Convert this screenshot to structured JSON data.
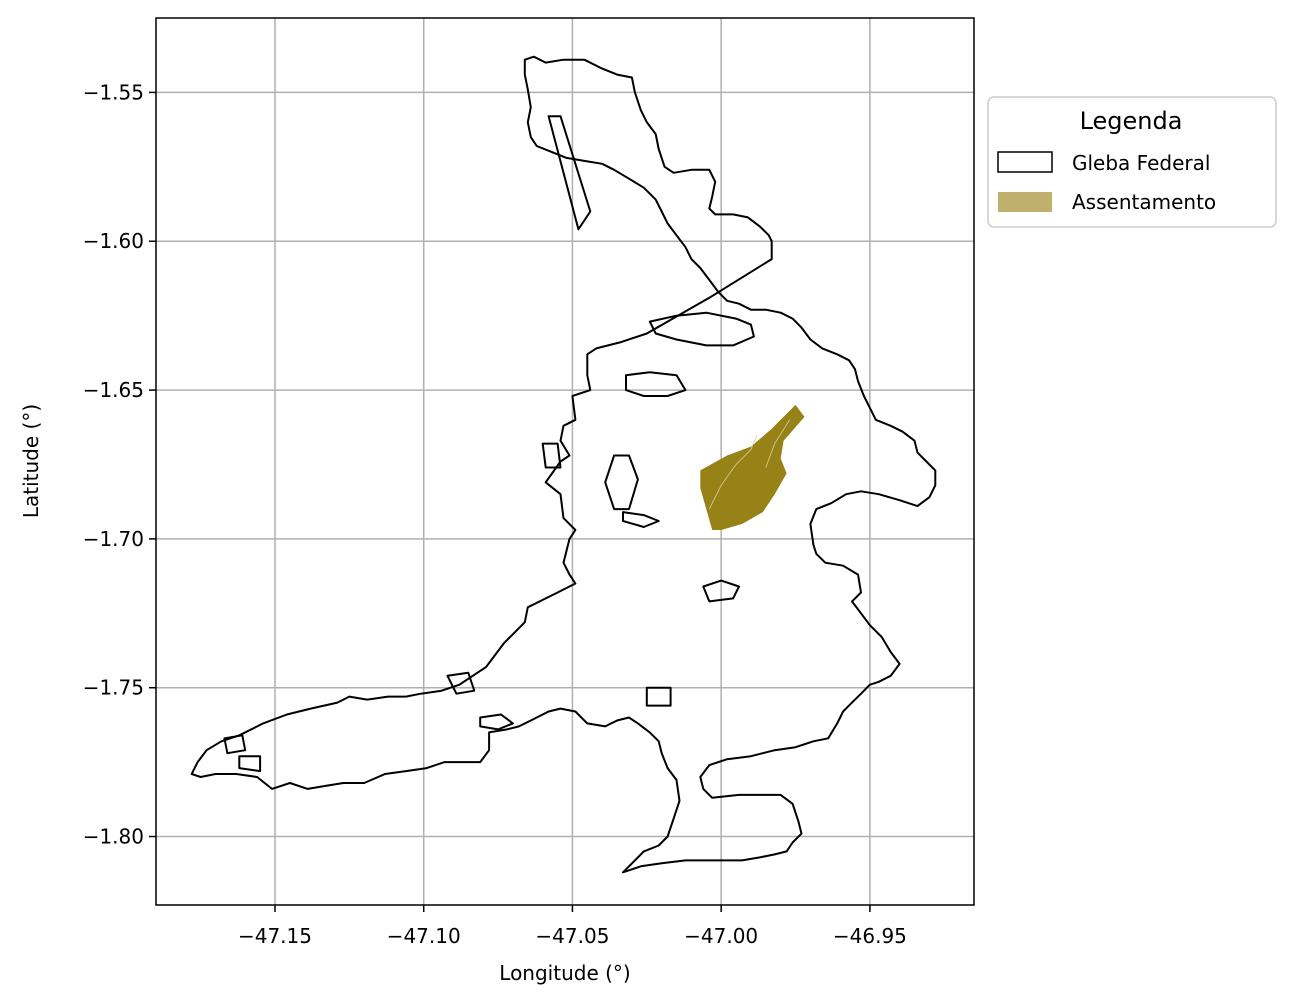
{
  "chart_data": {
    "type": "map",
    "xlabel": "Longitude (°)",
    "ylabel": "Latitude (°)",
    "xlim": [
      -47.19,
      -46.915
    ],
    "ylim": [
      -1.823,
      -1.525
    ],
    "xticks": [
      -47.15,
      -47.1,
      -47.05,
      -47.0,
      -46.95
    ],
    "xtick_labels": [
      "−47.15",
      "−47.10",
      "−47.05",
      "−47.00",
      "−46.95"
    ],
    "yticks": [
      -1.55,
      -1.6,
      -1.65,
      -1.7,
      -1.75,
      -1.8
    ],
    "ytick_labels": [
      "−1.55",
      "−1.60",
      "−1.65",
      "−1.70",
      "−1.75",
      "−1.80"
    ],
    "grid": true,
    "legend": {
      "title": "Legenda",
      "placement": "outside-upper-right",
      "entries": [
        {
          "label": "Gleba Federal",
          "style": "outline",
          "color": "#000000"
        },
        {
          "label": "Assentamento",
          "style": "fill",
          "color": "#bfb06e"
        }
      ]
    },
    "colors": {
      "gleba_outline": "#000000",
      "assentamento_fill": "#968217",
      "legend_assentamento": "#bfb06e",
      "grid": "#b0b0b0"
    },
    "gleba_federal": [
      [
        [
          -47.066,
          -1.539
        ],
        [
          -47.063,
          -1.538
        ],
        [
          -47.059,
          -1.54
        ],
        [
          -47.053,
          -1.539
        ],
        [
          -47.046,
          -1.539
        ],
        [
          -47.04,
          -1.542
        ],
        [
          -47.035,
          -1.544
        ],
        [
          -47.03,
          -1.545
        ],
        [
          -47.029,
          -1.55
        ],
        [
          -47.027,
          -1.556
        ],
        [
          -47.025,
          -1.56
        ],
        [
          -47.022,
          -1.564
        ],
        [
          -47.021,
          -1.569
        ],
        [
          -47.019,
          -1.575
        ],
        [
          -47.016,
          -1.577
        ],
        [
          -47.01,
          -1.576
        ],
        [
          -47.004,
          -1.576
        ],
        [
          -47.002,
          -1.58
        ],
        [
          -47.003,
          -1.585
        ],
        [
          -47.004,
          -1.589
        ],
        [
          -47.002,
          -1.591
        ],
        [
          -46.996,
          -1.591
        ],
        [
          -46.991,
          -1.592
        ],
        [
          -46.987,
          -1.595
        ],
        [
          -46.984,
          -1.598
        ],
        [
          -46.983,
          -1.6
        ],
        [
          -46.983,
          -1.606
        ],
        [
          -47.004,
          -1.619
        ],
        [
          -47.025,
          -1.631
        ],
        [
          -47.034,
          -1.634
        ],
        [
          -47.042,
          -1.636
        ],
        [
          -47.045,
          -1.638
        ],
        [
          -47.045,
          -1.645
        ],
        [
          -47.044,
          -1.65
        ],
        [
          -47.05,
          -1.652
        ],
        [
          -47.049,
          -1.66
        ],
        [
          -47.053,
          -1.662
        ],
        [
          -47.054,
          -1.667
        ],
        [
          -47.051,
          -1.672
        ],
        [
          -47.054,
          -1.674
        ],
        [
          -47.059,
          -1.681
        ],
        [
          -47.054,
          -1.685
        ],
        [
          -47.053,
          -1.693
        ],
        [
          -47.049,
          -1.697
        ],
        [
          -47.051,
          -1.7
        ],
        [
          -47.053,
          -1.708
        ],
        [
          -47.051,
          -1.712
        ],
        [
          -47.049,
          -1.715
        ],
        [
          -47.055,
          -1.718
        ],
        [
          -47.061,
          -1.721
        ],
        [
          -47.065,
          -1.723
        ],
        [
          -47.066,
          -1.728
        ],
        [
          -47.069,
          -1.731
        ],
        [
          -47.073,
          -1.735
        ],
        [
          -47.079,
          -1.743
        ],
        [
          -47.088,
          -1.749
        ],
        [
          -47.094,
          -1.751
        ],
        [
          -47.101,
          -1.752
        ],
        [
          -47.106,
          -1.753
        ],
        [
          -47.112,
          -1.753
        ],
        [
          -47.119,
          -1.754
        ],
        [
          -47.125,
          -1.753
        ],
        [
          -47.129,
          -1.755
        ],
        [
          -47.138,
          -1.757
        ],
        [
          -47.146,
          -1.759
        ],
        [
          -47.154,
          -1.762
        ],
        [
          -47.162,
          -1.766
        ],
        [
          -47.168,
          -1.768
        ],
        [
          -47.173,
          -1.771
        ],
        [
          -47.176,
          -1.775
        ],
        [
          -47.178,
          -1.779
        ],
        [
          -47.175,
          -1.78
        ],
        [
          -47.17,
          -1.779
        ],
        [
          -47.163,
          -1.779
        ],
        [
          -47.156,
          -1.78
        ],
        [
          -47.151,
          -1.784
        ],
        [
          -47.145,
          -1.782
        ],
        [
          -47.139,
          -1.784
        ],
        [
          -47.133,
          -1.783
        ],
        [
          -47.127,
          -1.782
        ],
        [
          -47.12,
          -1.782
        ],
        [
          -47.113,
          -1.779
        ],
        [
          -47.106,
          -1.778
        ],
        [
          -47.099,
          -1.777
        ],
        [
          -47.093,
          -1.775
        ],
        [
          -47.087,
          -1.775
        ],
        [
          -47.081,
          -1.775
        ],
        [
          -47.078,
          -1.771
        ],
        [
          -47.078,
          -1.765
        ],
        [
          -47.072,
          -1.764
        ],
        [
          -47.068,
          -1.763
        ],
        [
          -47.064,
          -1.761
        ],
        [
          -47.058,
          -1.758
        ],
        [
          -47.054,
          -1.757
        ],
        [
          -47.049,
          -1.758
        ],
        [
          -47.045,
          -1.762
        ],
        [
          -47.039,
          -1.763
        ],
        [
          -47.035,
          -1.761
        ],
        [
          -47.031,
          -1.76
        ],
        [
          -47.028,
          -1.762
        ],
        [
          -47.024,
          -1.765
        ],
        [
          -47.021,
          -1.768
        ],
        [
          -47.02,
          -1.772
        ],
        [
          -47.018,
          -1.777
        ],
        [
          -47.015,
          -1.781
        ],
        [
          -47.014,
          -1.788
        ],
        [
          -47.016,
          -1.794
        ],
        [
          -47.018,
          -1.8
        ],
        [
          -47.021,
          -1.803
        ],
        [
          -47.026,
          -1.805
        ],
        [
          -47.029,
          -1.808
        ],
        [
          -47.033,
          -1.812
        ],
        [
          -47.027,
          -1.81
        ],
        [
          -47.02,
          -1.809
        ],
        [
          -47.012,
          -1.808
        ],
        [
          -47.002,
          -1.808
        ],
        [
          -46.993,
          -1.808
        ],
        [
          -46.987,
          -1.807
        ],
        [
          -46.982,
          -1.806
        ],
        [
          -46.978,
          -1.805
        ],
        [
          -46.976,
          -1.802
        ],
        [
          -46.973,
          -1.799
        ],
        [
          -46.974,
          -1.795
        ],
        [
          -46.976,
          -1.789
        ],
        [
          -46.98,
          -1.786
        ],
        [
          -46.987,
          -1.786
        ],
        [
          -46.994,
          -1.786
        ],
        [
          -47.003,
          -1.787
        ],
        [
          -47.006,
          -1.784
        ],
        [
          -47.007,
          -1.78
        ],
        [
          -47.004,
          -1.776
        ],
        [
          -46.998,
          -1.774
        ],
        [
          -46.99,
          -1.773
        ],
        [
          -46.982,
          -1.771
        ],
        [
          -46.975,
          -1.77
        ],
        [
          -46.969,
          -1.768
        ],
        [
          -46.964,
          -1.767
        ],
        [
          -46.961,
          -1.762
        ],
        [
          -46.959,
          -1.758
        ],
        [
          -46.956,
          -1.755
        ],
        [
          -46.953,
          -1.752
        ],
        [
          -46.95,
          -1.749
        ],
        [
          -46.947,
          -1.748
        ],
        [
          -46.943,
          -1.746
        ],
        [
          -46.94,
          -1.742
        ],
        [
          -46.943,
          -1.738
        ],
        [
          -46.946,
          -1.733
        ],
        [
          -46.95,
          -1.729
        ],
        [
          -46.953,
          -1.725
        ],
        [
          -46.956,
          -1.721
        ],
        [
          -46.953,
          -1.718
        ],
        [
          -46.954,
          -1.712
        ],
        [
          -46.959,
          -1.709
        ],
        [
          -46.965,
          -1.708
        ],
        [
          -46.968,
          -1.705
        ],
        [
          -46.969,
          -1.702
        ],
        [
          -46.97,
          -1.695
        ],
        [
          -46.968,
          -1.69
        ],
        [
          -46.963,
          -1.688
        ],
        [
          -46.958,
          -1.685
        ],
        [
          -46.953,
          -1.684
        ],
        [
          -46.947,
          -1.685
        ],
        [
          -46.94,
          -1.687
        ],
        [
          -46.934,
          -1.689
        ],
        [
          -46.93,
          -1.686
        ],
        [
          -46.928,
          -1.682
        ],
        [
          -46.928,
          -1.677
        ],
        [
          -46.931,
          -1.674
        ],
        [
          -46.934,
          -1.671
        ],
        [
          -46.935,
          -1.667
        ],
        [
          -46.939,
          -1.664
        ],
        [
          -46.943,
          -1.662
        ],
        [
          -46.948,
          -1.66
        ],
        [
          -46.95,
          -1.656
        ],
        [
          -46.952,
          -1.652
        ],
        [
          -46.954,
          -1.647
        ],
        [
          -46.955,
          -1.643
        ],
        [
          -46.957,
          -1.64
        ],
        [
          -46.961,
          -1.638
        ],
        [
          -46.966,
          -1.636
        ],
        [
          -46.97,
          -1.633
        ],
        [
          -46.973,
          -1.629
        ],
        [
          -46.976,
          -1.626
        ],
        [
          -46.98,
          -1.624
        ],
        [
          -46.985,
          -1.623
        ],
        [
          -46.99,
          -1.623
        ],
        [
          -46.994,
          -1.621
        ],
        [
          -46.998,
          -1.62
        ],
        [
          -47.001,
          -1.617
        ],
        [
          -47.004,
          -1.613
        ],
        [
          -47.007,
          -1.609
        ],
        [
          -47.01,
          -1.606
        ],
        [
          -47.012,
          -1.602
        ],
        [
          -47.015,
          -1.598
        ],
        [
          -47.018,
          -1.594
        ],
        [
          -47.02,
          -1.59
        ],
        [
          -47.022,
          -1.586
        ],
        [
          -47.026,
          -1.582
        ],
        [
          -47.031,
          -1.579
        ],
        [
          -47.036,
          -1.576
        ],
        [
          -47.04,
          -1.574
        ],
        [
          -47.046,
          -1.573
        ],
        [
          -47.052,
          -1.572
        ],
        [
          -47.057,
          -1.57
        ],
        [
          -47.062,
          -1.568
        ],
        [
          -47.064,
          -1.565
        ],
        [
          -47.065,
          -1.56
        ],
        [
          -47.064,
          -1.555
        ],
        [
          -47.065,
          -1.549
        ],
        [
          -47.066,
          -1.544
        ],
        [
          -47.066,
          -1.539
        ]
      ],
      [
        [
          -47.058,
          -1.558
        ],
        [
          -47.054,
          -1.558
        ],
        [
          -47.044,
          -1.59
        ],
        [
          -47.048,
          -1.596
        ],
        [
          -47.058,
          -1.558
        ]
      ],
      [
        [
          -47.024,
          -1.627
        ],
        [
          -47.015,
          -1.625
        ],
        [
          -47.005,
          -1.624
        ],
        [
          -46.995,
          -1.626
        ],
        [
          -46.99,
          -1.628
        ],
        [
          -46.989,
          -1.632
        ],
        [
          -46.996,
          -1.635
        ],
        [
          -47.005,
          -1.635
        ],
        [
          -47.015,
          -1.633
        ],
        [
          -47.022,
          -1.631
        ],
        [
          -47.024,
          -1.627
        ]
      ],
      [
        [
          -47.032,
          -1.645
        ],
        [
          -47.024,
          -1.644
        ],
        [
          -47.015,
          -1.645
        ],
        [
          -47.012,
          -1.65
        ],
        [
          -47.018,
          -1.652
        ],
        [
          -47.026,
          -1.652
        ],
        [
          -47.032,
          -1.65
        ],
        [
          -47.032,
          -1.645
        ]
      ],
      [
        [
          -47.036,
          -1.672
        ],
        [
          -47.031,
          -1.672
        ],
        [
          -47.028,
          -1.68
        ],
        [
          -47.031,
          -1.69
        ],
        [
          -47.036,
          -1.69
        ],
        [
          -47.039,
          -1.681
        ],
        [
          -47.036,
          -1.672
        ]
      ],
      [
        [
          -47.033,
          -1.691
        ],
        [
          -47.026,
          -1.692
        ],
        [
          -47.021,
          -1.694
        ],
        [
          -47.026,
          -1.696
        ],
        [
          -47.033,
          -1.694
        ],
        [
          -47.033,
          -1.691
        ]
      ],
      [
        [
          -47.006,
          -1.716
        ],
        [
          -47.0,
          -1.714
        ],
        [
          -46.994,
          -1.716
        ],
        [
          -46.996,
          -1.72
        ],
        [
          -47.004,
          -1.721
        ],
        [
          -47.006,
          -1.716
        ]
      ],
      [
        [
          -47.025,
          -1.75
        ],
        [
          -47.017,
          -1.75
        ],
        [
          -47.017,
          -1.756
        ],
        [
          -47.025,
          -1.756
        ],
        [
          -47.025,
          -1.75
        ]
      ],
      [
        [
          -47.06,
          -1.668
        ],
        [
          -47.055,
          -1.668
        ],
        [
          -47.054,
          -1.676
        ],
        [
          -47.059,
          -1.676
        ],
        [
          -47.06,
          -1.668
        ]
      ],
      [
        [
          -47.167,
          -1.767
        ],
        [
          -47.161,
          -1.766
        ],
        [
          -47.16,
          -1.771
        ],
        [
          -47.166,
          -1.772
        ],
        [
          -47.167,
          -1.767
        ]
      ],
      [
        [
          -47.162,
          -1.773
        ],
        [
          -47.155,
          -1.773
        ],
        [
          -47.155,
          -1.778
        ],
        [
          -47.162,
          -1.777
        ],
        [
          -47.162,
          -1.773
        ]
      ],
      [
        [
          -47.081,
          -1.76
        ],
        [
          -47.074,
          -1.759
        ],
        [
          -47.07,
          -1.762
        ],
        [
          -47.075,
          -1.764
        ],
        [
          -47.081,
          -1.763
        ],
        [
          -47.081,
          -1.76
        ]
      ],
      [
        [
          -47.092,
          -1.746
        ],
        [
          -47.085,
          -1.745
        ],
        [
          -47.083,
          -1.751
        ],
        [
          -47.089,
          -1.752
        ],
        [
          -47.092,
          -1.746
        ]
      ]
    ],
    "assentamento": [
      [
        [
          -47.007,
          -1.677
        ],
        [
          -46.998,
          -1.672
        ],
        [
          -46.99,
          -1.669
        ],
        [
          -46.983,
          -1.663
        ],
        [
          -46.975,
          -1.655
        ],
        [
          -46.972,
          -1.659
        ],
        [
          -46.979,
          -1.667
        ],
        [
          -46.98,
          -1.673
        ],
        [
          -46.978,
          -1.678
        ],
        [
          -46.982,
          -1.685
        ],
        [
          -46.986,
          -1.691
        ],
        [
          -46.993,
          -1.695
        ],
        [
          -47.0,
          -1.697
        ],
        [
          -47.003,
          -1.697
        ],
        [
          -47.005,
          -1.69
        ],
        [
          -47.007,
          -1.683
        ],
        [
          -47.007,
          -1.677
        ]
      ]
    ],
    "assentamento_internal_lines": [
      [
        [
          -46.988,
          -1.665
        ],
        [
          -46.99,
          -1.67
        ],
        [
          -46.995,
          -1.675
        ],
        [
          -47.0,
          -1.682
        ],
        [
          -47.004,
          -1.69
        ]
      ],
      [
        [
          -46.977,
          -1.66
        ],
        [
          -46.982,
          -1.668
        ],
        [
          -46.985,
          -1.676
        ]
      ]
    ]
  }
}
